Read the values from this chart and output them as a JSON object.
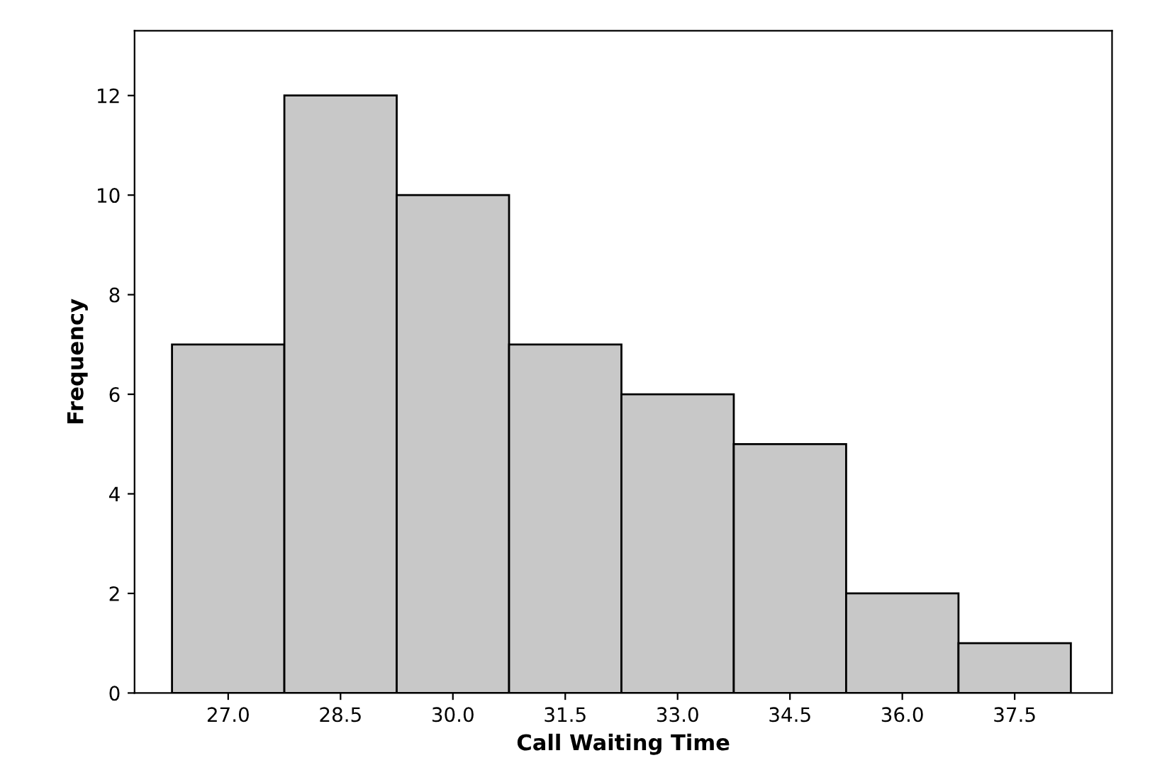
{
  "chart_data": {
    "type": "histogram",
    "xlabel": "Call Waiting Time",
    "ylabel": "Frequency",
    "bins": [
      26.25,
      27.75,
      29.25,
      30.75,
      32.25,
      33.75,
      35.25,
      36.75,
      38.25
    ],
    "values": [
      7,
      12,
      10,
      7,
      6,
      5,
      2,
      1
    ],
    "color": "#c8c8c8",
    "xlim": [
      25.75,
      38.8
    ],
    "ylim": [
      0,
      13.3
    ],
    "xticks": [
      {
        "value": 27,
        "label": "27.0"
      },
      {
        "value": 28.5,
        "label": "28.5"
      },
      {
        "value": 30,
        "label": "30.0"
      },
      {
        "value": 31.5,
        "label": "31.5"
      },
      {
        "value": 33,
        "label": "33.0"
      },
      {
        "value": 34.5,
        "label": "34.5"
      },
      {
        "value": 36,
        "label": "36.0"
      },
      {
        "value": 37.5,
        "label": "37.5"
      }
    ],
    "yticks": [
      0,
      2,
      4,
      6,
      8,
      10,
      12
    ],
    "grid": false
  }
}
